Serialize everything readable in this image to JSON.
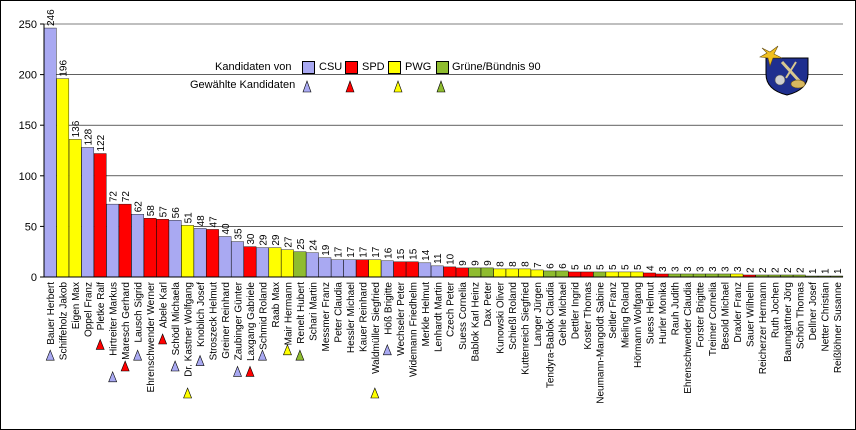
{
  "chart_data": {
    "type": "bar",
    "ylim": [
      0,
      250
    ],
    "yticks": [
      "0",
      "50",
      "100",
      "150",
      "200",
      "250"
    ],
    "grid": "horizontal",
    "legend_placement": "top-right",
    "legend": {
      "title_left": "Kandidaten von",
      "elected_label": "Gewählte Kandidaten",
      "parties": [
        {
          "key": "CSU",
          "name": "CSU",
          "color": "#a9a9f2"
        },
        {
          "key": "SPD",
          "name": "SPD",
          "color": "#ff0000"
        },
        {
          "key": "PWG",
          "name": "PWG",
          "color": "#ffff00"
        },
        {
          "key": "GRUENE",
          "name": "Grüne/Bündnis 90",
          "color": "#8fbc2f"
        }
      ]
    },
    "bars": [
      {
        "name": "Bauer Herbert",
        "value": 246,
        "party": "CSU",
        "elected": true
      },
      {
        "name": "Schiffeholz Jakob",
        "value": 196,
        "party": "PWG",
        "elected": false
      },
      {
        "name": "Eigen Max",
        "value": 136,
        "party": "PWG",
        "elected": false
      },
      {
        "name": "Oppel Franz",
        "value": 128,
        "party": "CSU",
        "elected": false
      },
      {
        "name": "Pletke Ralf",
        "value": 122,
        "party": "SPD",
        "elected": true
      },
      {
        "name": "Hirtreiter Markus",
        "value": 72,
        "party": "CSU",
        "elected": true
      },
      {
        "name": "Maresch Gerhard",
        "value": 72,
        "party": "SPD",
        "elected": true
      },
      {
        "name": "Lausch Sigrid",
        "value": 62,
        "party": "CSU",
        "elected": true
      },
      {
        "name": "Ehrenschwender Werner",
        "value": 58,
        "party": "SPD",
        "elected": false
      },
      {
        "name": "Abele Karl",
        "value": 57,
        "party": "SPD",
        "elected": true
      },
      {
        "name": "Schödl Michaela",
        "value": 56,
        "party": "CSU",
        "elected": true
      },
      {
        "name": "Dr. Kastner Wolfgang",
        "value": 51,
        "party": "PWG",
        "elected": true
      },
      {
        "name": "Knoblich Josef",
        "value": 48,
        "party": "CSU",
        "elected": true
      },
      {
        "name": "Stroszeck Helmut",
        "value": 47,
        "party": "SPD",
        "elected": false
      },
      {
        "name": "Greiner Reinhard",
        "value": 40,
        "party": "CSU",
        "elected": false
      },
      {
        "name": "Zaubinger Günter",
        "value": 35,
        "party": "CSU",
        "elected": true
      },
      {
        "name": "Laxgang Gabriele",
        "value": 30,
        "party": "SPD",
        "elected": true
      },
      {
        "name": "Schmid Roland",
        "value": 29,
        "party": "CSU",
        "elected": true
      },
      {
        "name": "Raab Max",
        "value": 29,
        "party": "PWG",
        "elected": false
      },
      {
        "name": "Mair Hermann",
        "value": 27,
        "party": "PWG",
        "elected": true
      },
      {
        "name": "Renelt Hubert",
        "value": 25,
        "party": "GRUENE",
        "elected": true
      },
      {
        "name": "Schari Martin",
        "value": 24,
        "party": "CSU",
        "elected": false
      },
      {
        "name": "Messmer Franz",
        "value": 19,
        "party": "CSU",
        "elected": false
      },
      {
        "name": "Peter Claudia",
        "value": 17,
        "party": "CSU",
        "elected": false
      },
      {
        "name": "Hessler Michael",
        "value": 17,
        "party": "CSU",
        "elected": false
      },
      {
        "name": "Kauer Reinhard",
        "value": 17,
        "party": "SPD",
        "elected": false
      },
      {
        "name": "Waldmüller Siegfried",
        "value": 17,
        "party": "PWG",
        "elected": true
      },
      {
        "name": "Höß Brigitte",
        "value": 16,
        "party": "CSU",
        "elected": true
      },
      {
        "name": "Wechseler Peter",
        "value": 15,
        "party": "SPD",
        "elected": false
      },
      {
        "name": "Widemann Friedhelm",
        "value": 15,
        "party": "SPD",
        "elected": false
      },
      {
        "name": "Merkle Helmut",
        "value": 14,
        "party": "CSU",
        "elected": false
      },
      {
        "name": "Lenhardt Martin",
        "value": 11,
        "party": "CSU",
        "elected": false
      },
      {
        "name": "Czech Peter",
        "value": 10,
        "party": "SPD",
        "elected": false
      },
      {
        "name": "Suess Cornelia",
        "value": 9,
        "party": "SPD",
        "elected": false
      },
      {
        "name": "Bablok Karl Heinz",
        "value": 9,
        "party": "GRUENE",
        "elected": false
      },
      {
        "name": "Dax Peter",
        "value": 9,
        "party": "GRUENE",
        "elected": false
      },
      {
        "name": "Kunowski Oliver",
        "value": 8,
        "party": "PWG",
        "elected": false
      },
      {
        "name": "Schießl Roland",
        "value": 8,
        "party": "PWG",
        "elected": false
      },
      {
        "name": "Kuttenreich Siegfried",
        "value": 8,
        "party": "PWG",
        "elected": false
      },
      {
        "name": "Langer Jürgen",
        "value": 7,
        "party": "PWG",
        "elected": false
      },
      {
        "name": "Tendyra-Bablok Claudia",
        "value": 6,
        "party": "GRUENE",
        "elected": false
      },
      {
        "name": "Gehle Michael",
        "value": 6,
        "party": "GRUENE",
        "elected": false
      },
      {
        "name": "Dettler Ingrid",
        "value": 5,
        "party": "SPD",
        "elected": false
      },
      {
        "name": "Koster Thomas",
        "value": 5,
        "party": "SPD",
        "elected": false
      },
      {
        "name": "Neumann-Mangoldt Sabine",
        "value": 5,
        "party": "GRUENE",
        "elected": false
      },
      {
        "name": "Seitler Franz",
        "value": 5,
        "party": "PWG",
        "elected": false
      },
      {
        "name": "Mieling Roland",
        "value": 5,
        "party": "PWG",
        "elected": false
      },
      {
        "name": "Hörmann Wolfgang",
        "value": 5,
        "party": "PWG",
        "elected": false
      },
      {
        "name": "Suess Helmut",
        "value": 4,
        "party": "SPD",
        "elected": false
      },
      {
        "name": "Hurler Monika",
        "value": 3,
        "party": "SPD",
        "elected": false
      },
      {
        "name": "Rauh Judith",
        "value": 3,
        "party": "GRUENE",
        "elected": false
      },
      {
        "name": "Ehrenschwender Claudia",
        "value": 3,
        "party": "GRUENE",
        "elected": false
      },
      {
        "name": "Forster Brigitte",
        "value": 3,
        "party": "GRUENE",
        "elected": false
      },
      {
        "name": "Treimer Cornelia",
        "value": 3,
        "party": "GRUENE",
        "elected": false
      },
      {
        "name": "Besold Michael",
        "value": 3,
        "party": "GRUENE",
        "elected": false
      },
      {
        "name": "Draxler Franz",
        "value": 3,
        "party": "PWG",
        "elected": false
      },
      {
        "name": "Sauer Wilhelm",
        "value": 2,
        "party": "SPD",
        "elected": false
      },
      {
        "name": "Reicherzer Hermann",
        "value": 2,
        "party": "GRUENE",
        "elected": false
      },
      {
        "name": "Ruth Jochen",
        "value": 2,
        "party": "GRUENE",
        "elected": false
      },
      {
        "name": "Baumgärtner Jörg",
        "value": 2,
        "party": "GRUENE",
        "elected": false
      },
      {
        "name": "Schön Thomas",
        "value": 2,
        "party": "GRUENE",
        "elected": false
      },
      {
        "name": "Dellner Josef",
        "value": 1,
        "party": "GRUENE",
        "elected": false
      },
      {
        "name": "Netter Christian",
        "value": 1,
        "party": "GRUENE",
        "elected": false
      },
      {
        "name": "Reißlöhner Susanne",
        "value": 1,
        "party": "GRUENE",
        "elected": false
      }
    ]
  }
}
